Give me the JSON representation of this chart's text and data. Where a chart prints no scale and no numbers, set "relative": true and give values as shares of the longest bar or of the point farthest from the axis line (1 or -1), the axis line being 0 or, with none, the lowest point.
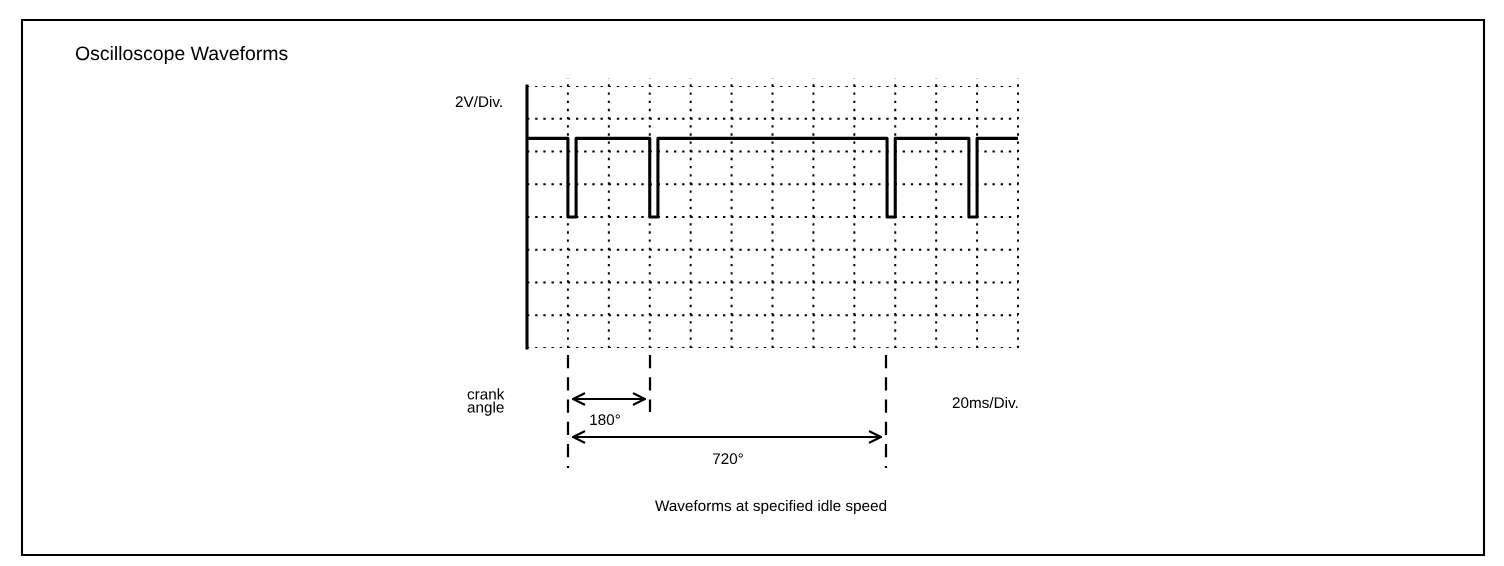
{
  "chart_data": {
    "type": "step",
    "title": "Oscilloscope Waveforms",
    "relative": true,
    "grid": true,
    "categories": [
      null,
      null,
      null,
      null,
      null,
      null,
      null,
      null,
      null,
      null,
      null,
      null,
      null,
      null,
      null,
      null,
      null,
      null,
      null,
      null,
      null,
      null,
      null,
      null,
      null,
      null,
      null,
      null,
      null,
      null,
      null,
      null,
      null,
      null,
      null,
      null,
      null,
      null,
      null,
      null,
      null,
      null,
      null,
      null,
      null,
      null,
      null,
      null,
      null,
      null,
      null,
      null,
      null,
      null,
      null,
      null,
      null,
      null,
      null,
      null,
      null
    ],
    "series": [
      {
        "color": "#000000",
        "values": [
          1,
          1,
          1,
          1,
          1,
          0,
          1,
          1,
          1,
          1,
          1,
          1,
          1,
          1,
          1,
          0,
          1,
          1,
          1,
          1,
          1,
          1,
          1,
          1,
          1,
          1,
          1,
          1,
          1,
          1,
          1,
          1,
          1,
          1,
          1,
          1,
          1,
          1,
          1,
          1,
          1,
          1,
          1,
          1,
          0,
          1,
          1,
          1,
          1,
          1,
          1,
          1,
          1,
          1,
          0,
          1,
          1,
          1,
          1,
          1,
          1
        ]
      }
    ],
    "annotations": [
      "2V/Div.",
      "20ms/Div.",
      "crank\nangle",
      "180°",
      "720°",
      "Waveforms at specified idle speed"
    ]
  }
}
